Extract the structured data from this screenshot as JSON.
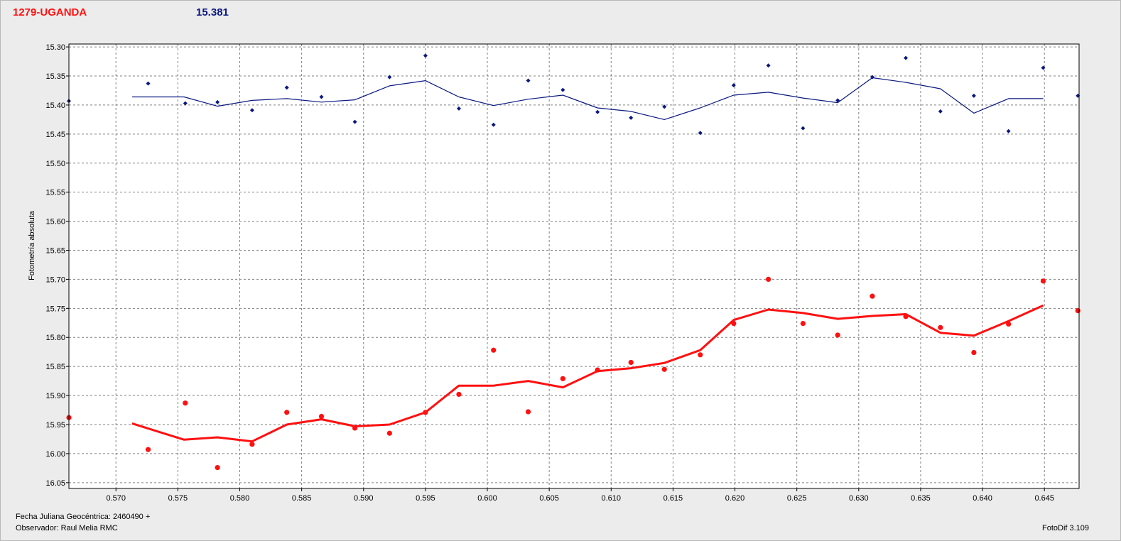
{
  "header": {
    "object_name": "1279-UGANDA",
    "value": "15.381"
  },
  "footer": {
    "jd_label": "Fecha Juliana Geocéntrica: 2460490 +",
    "observer": "Observador: Raul Melia RMC",
    "software": "FotoDif 3.109"
  },
  "colors": {
    "blue": "#0b1880",
    "red": "#ff1010",
    "background": "#ececec",
    "plot_bg": "#ffffff",
    "grid": "#808080"
  },
  "chart_data": {
    "type": "scatter",
    "title": "",
    "xlabel": "",
    "ylabel": "Fotometría absoluta",
    "xlim": [
      0.5662,
      0.6478
    ],
    "ylim": [
      15.295,
      16.06
    ],
    "y_inverted": true,
    "grid": true,
    "x_ticks": [
      "0.570",
      "0.575",
      "0.580",
      "0.585",
      "0.590",
      "0.595",
      "0.600",
      "0.605",
      "0.610",
      "0.615",
      "0.620",
      "0.625",
      "0.630",
      "0.635",
      "0.640",
      "0.645"
    ],
    "y_ticks": [
      "15.30",
      "15.35",
      "15.40",
      "15.45",
      "15.50",
      "15.55",
      "15.60",
      "15.65",
      "15.70",
      "15.75",
      "15.80",
      "15.85",
      "15.90",
      "15.95",
      "16.00",
      "16.05"
    ],
    "series": [
      {
        "color": "#0b1880",
        "points": [
          [
            0.5662,
            15.393
          ],
          [
            0.5726,
            15.363
          ],
          [
            0.5756,
            15.397
          ],
          [
            0.5782,
            15.395
          ],
          [
            0.581,
            15.409
          ],
          [
            0.5838,
            15.37
          ],
          [
            0.5866,
            15.386
          ],
          [
            0.5893,
            15.429
          ],
          [
            0.5921,
            15.352
          ],
          [
            0.595,
            15.315
          ],
          [
            0.5977,
            15.406
          ],
          [
            0.6005,
            15.434
          ],
          [
            0.6033,
            15.358
          ],
          [
            0.6061,
            15.374
          ],
          [
            0.6089,
            15.412
          ],
          [
            0.6116,
            15.422
          ],
          [
            0.6143,
            15.403
          ],
          [
            0.6172,
            15.448
          ],
          [
            0.6199,
            15.366
          ],
          [
            0.6227,
            15.332
          ],
          [
            0.6255,
            15.44
          ],
          [
            0.6283,
            15.392
          ],
          [
            0.6311,
            15.352
          ],
          [
            0.6338,
            15.319
          ],
          [
            0.6366,
            15.411
          ],
          [
            0.6393,
            15.384
          ],
          [
            0.6421,
            15.445
          ],
          [
            0.6449,
            15.336
          ],
          [
            0.6477,
            15.384
          ]
        ],
        "trend": [
          [
            0.5713,
            15.386
          ],
          [
            0.5755,
            15.386
          ],
          [
            0.5782,
            15.402
          ],
          [
            0.581,
            15.392
          ],
          [
            0.5838,
            15.389
          ],
          [
            0.5866,
            15.395
          ],
          [
            0.5893,
            15.391
          ],
          [
            0.5921,
            15.367
          ],
          [
            0.595,
            15.358
          ],
          [
            0.5977,
            15.386
          ],
          [
            0.6005,
            15.401
          ],
          [
            0.6033,
            15.39
          ],
          [
            0.6061,
            15.383
          ],
          [
            0.6089,
            15.405
          ],
          [
            0.6116,
            15.411
          ],
          [
            0.6143,
            15.425
          ],
          [
            0.6172,
            15.405
          ],
          [
            0.6199,
            15.383
          ],
          [
            0.6227,
            15.378
          ],
          [
            0.6255,
            15.388
          ],
          [
            0.6283,
            15.396
          ],
          [
            0.6311,
            15.353
          ],
          [
            0.6338,
            15.361
          ],
          [
            0.6366,
            15.372
          ],
          [
            0.6393,
            15.414
          ],
          [
            0.6421,
            15.389
          ],
          [
            0.6449,
            15.389
          ]
        ]
      },
      {
        "color": "#ff1010",
        "points": [
          [
            0.5662,
            15.938
          ],
          [
            0.5726,
            15.993
          ],
          [
            0.5756,
            15.913
          ],
          [
            0.5782,
            16.024
          ],
          [
            0.581,
            15.984
          ],
          [
            0.5838,
            15.929
          ],
          [
            0.5866,
            15.936
          ],
          [
            0.5893,
            15.956
          ],
          [
            0.5921,
            15.965
          ],
          [
            0.595,
            15.929
          ],
          [
            0.5977,
            15.898
          ],
          [
            0.6005,
            15.822
          ],
          [
            0.6033,
            15.928
          ],
          [
            0.6061,
            15.871
          ],
          [
            0.6089,
            15.856
          ],
          [
            0.6116,
            15.843
          ],
          [
            0.6143,
            15.855
          ],
          [
            0.6172,
            15.83
          ],
          [
            0.6199,
            15.776
          ],
          [
            0.6227,
            15.7
          ],
          [
            0.6255,
            15.776
          ],
          [
            0.6283,
            15.796
          ],
          [
            0.6311,
            15.729
          ],
          [
            0.6338,
            15.764
          ],
          [
            0.6366,
            15.783
          ],
          [
            0.6393,
            15.826
          ],
          [
            0.6421,
            15.777
          ],
          [
            0.6449,
            15.703
          ],
          [
            0.6477,
            15.754
          ]
        ],
        "trend": [
          [
            0.5713,
            15.948
          ],
          [
            0.5755,
            15.976
          ],
          [
            0.5782,
            15.972
          ],
          [
            0.581,
            15.979
          ],
          [
            0.5838,
            15.95
          ],
          [
            0.5866,
            15.941
          ],
          [
            0.5893,
            15.953
          ],
          [
            0.5921,
            15.95
          ],
          [
            0.595,
            15.929
          ],
          [
            0.5977,
            15.883
          ],
          [
            0.6005,
            15.883
          ],
          [
            0.6033,
            15.875
          ],
          [
            0.6061,
            15.886
          ],
          [
            0.6089,
            15.858
          ],
          [
            0.6116,
            15.853
          ],
          [
            0.6143,
            15.844
          ],
          [
            0.6172,
            15.822
          ],
          [
            0.6199,
            15.77
          ],
          [
            0.6227,
            15.752
          ],
          [
            0.6255,
            15.758
          ],
          [
            0.6283,
            15.768
          ],
          [
            0.6311,
            15.763
          ],
          [
            0.6338,
            15.76
          ],
          [
            0.6366,
            15.792
          ],
          [
            0.6393,
            15.797
          ],
          [
            0.6421,
            15.772
          ],
          [
            0.6449,
            15.745
          ]
        ]
      }
    ]
  }
}
